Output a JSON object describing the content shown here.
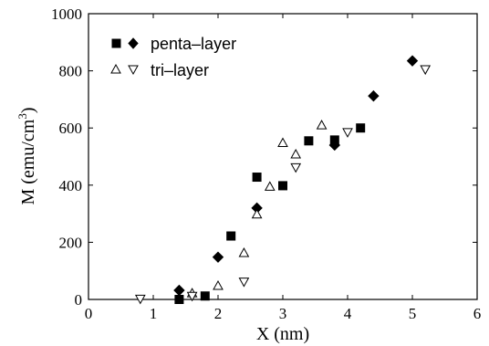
{
  "chart_data": {
    "type": "scatter",
    "title": "",
    "xlabel": "X  (nm)",
    "ylabel_main": "M  (emu/cm",
    "ylabel_sup": "3",
    "ylabel_close": ")",
    "xlim": [
      0,
      6
    ],
    "ylim": [
      0,
      1000
    ],
    "x_ticks": [
      0,
      1,
      2,
      3,
      4,
      5,
      6
    ],
    "y_ticks": [
      0,
      200,
      400,
      600,
      800,
      1000
    ],
    "x_tick_labels": [
      "0",
      "1",
      "2",
      "3",
      "4",
      "5",
      "6"
    ],
    "y_tick_labels": [
      "0",
      "200",
      "400",
      "600",
      "800",
      "1000"
    ],
    "grid": false,
    "legend_position": "top-left",
    "legend": [
      {
        "label": "penta–layer",
        "markers": [
          "square-filled",
          "diamond-filled"
        ]
      },
      {
        "label": "tri–layer",
        "markers": [
          "triangle-up-open",
          "triangle-down-open"
        ]
      }
    ],
    "series": [
      {
        "group": "penta-layer",
        "marker": "square-filled",
        "color": "#000000",
        "points": [
          [
            1.4,
            0
          ],
          [
            1.8,
            12
          ],
          [
            2.2,
            222
          ],
          [
            2.6,
            428
          ],
          [
            3.0,
            398
          ],
          [
            3.4,
            555
          ],
          [
            3.8,
            558
          ],
          [
            4.2,
            600
          ]
        ]
      },
      {
        "group": "penta-layer",
        "marker": "diamond-filled",
        "color": "#000000",
        "points": [
          [
            1.4,
            32
          ],
          [
            2.0,
            148
          ],
          [
            2.6,
            320
          ],
          [
            3.8,
            540
          ],
          [
            4.4,
            712
          ],
          [
            5.0,
            835
          ]
        ]
      },
      {
        "group": "tri-layer",
        "marker": "triangle-up-open",
        "color": "#000000",
        "points": [
          [
            1.6,
            22
          ],
          [
            2.0,
            48
          ],
          [
            2.4,
            163
          ],
          [
            2.6,
            298
          ],
          [
            2.8,
            395
          ],
          [
            3.0,
            548
          ],
          [
            3.2,
            508
          ],
          [
            3.6,
            610
          ]
        ]
      },
      {
        "group": "tri-layer",
        "marker": "triangle-down-open",
        "color": "#000000",
        "points": [
          [
            0.8,
            2
          ],
          [
            1.6,
            12
          ],
          [
            2.4,
            62
          ],
          [
            3.2,
            462
          ],
          [
            4.0,
            585
          ],
          [
            5.2,
            805
          ]
        ]
      }
    ]
  }
}
